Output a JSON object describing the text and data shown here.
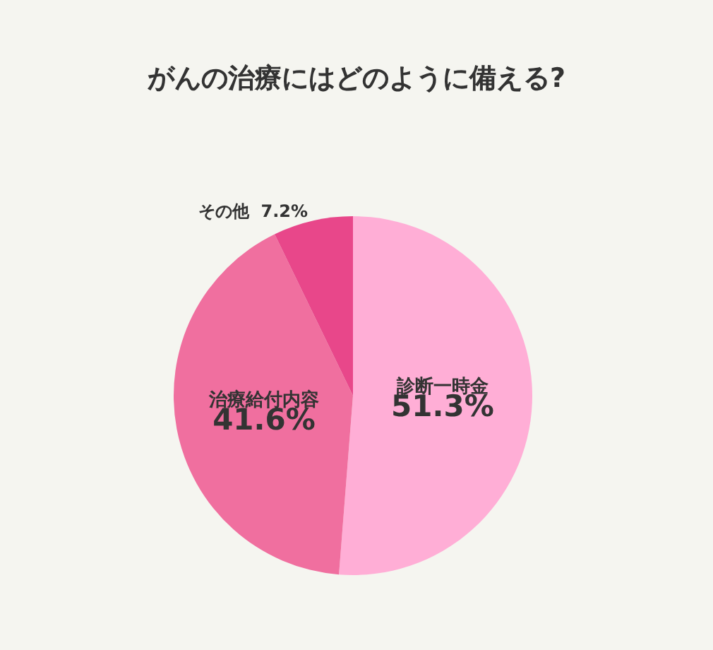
{
  "chart_data": {
    "type": "pie",
    "title": "がんの治療にはどのように備える?",
    "categories": [
      "診断一時金",
      "治療給付内容",
      "その他"
    ],
    "values": [
      51.3,
      41.6,
      7.2
    ],
    "value_labels": [
      "51.3%",
      "41.6%",
      "7.2%"
    ],
    "colors": [
      "#ffaed6",
      "#f06f9f",
      "#e8478a"
    ],
    "legend": false
  }
}
